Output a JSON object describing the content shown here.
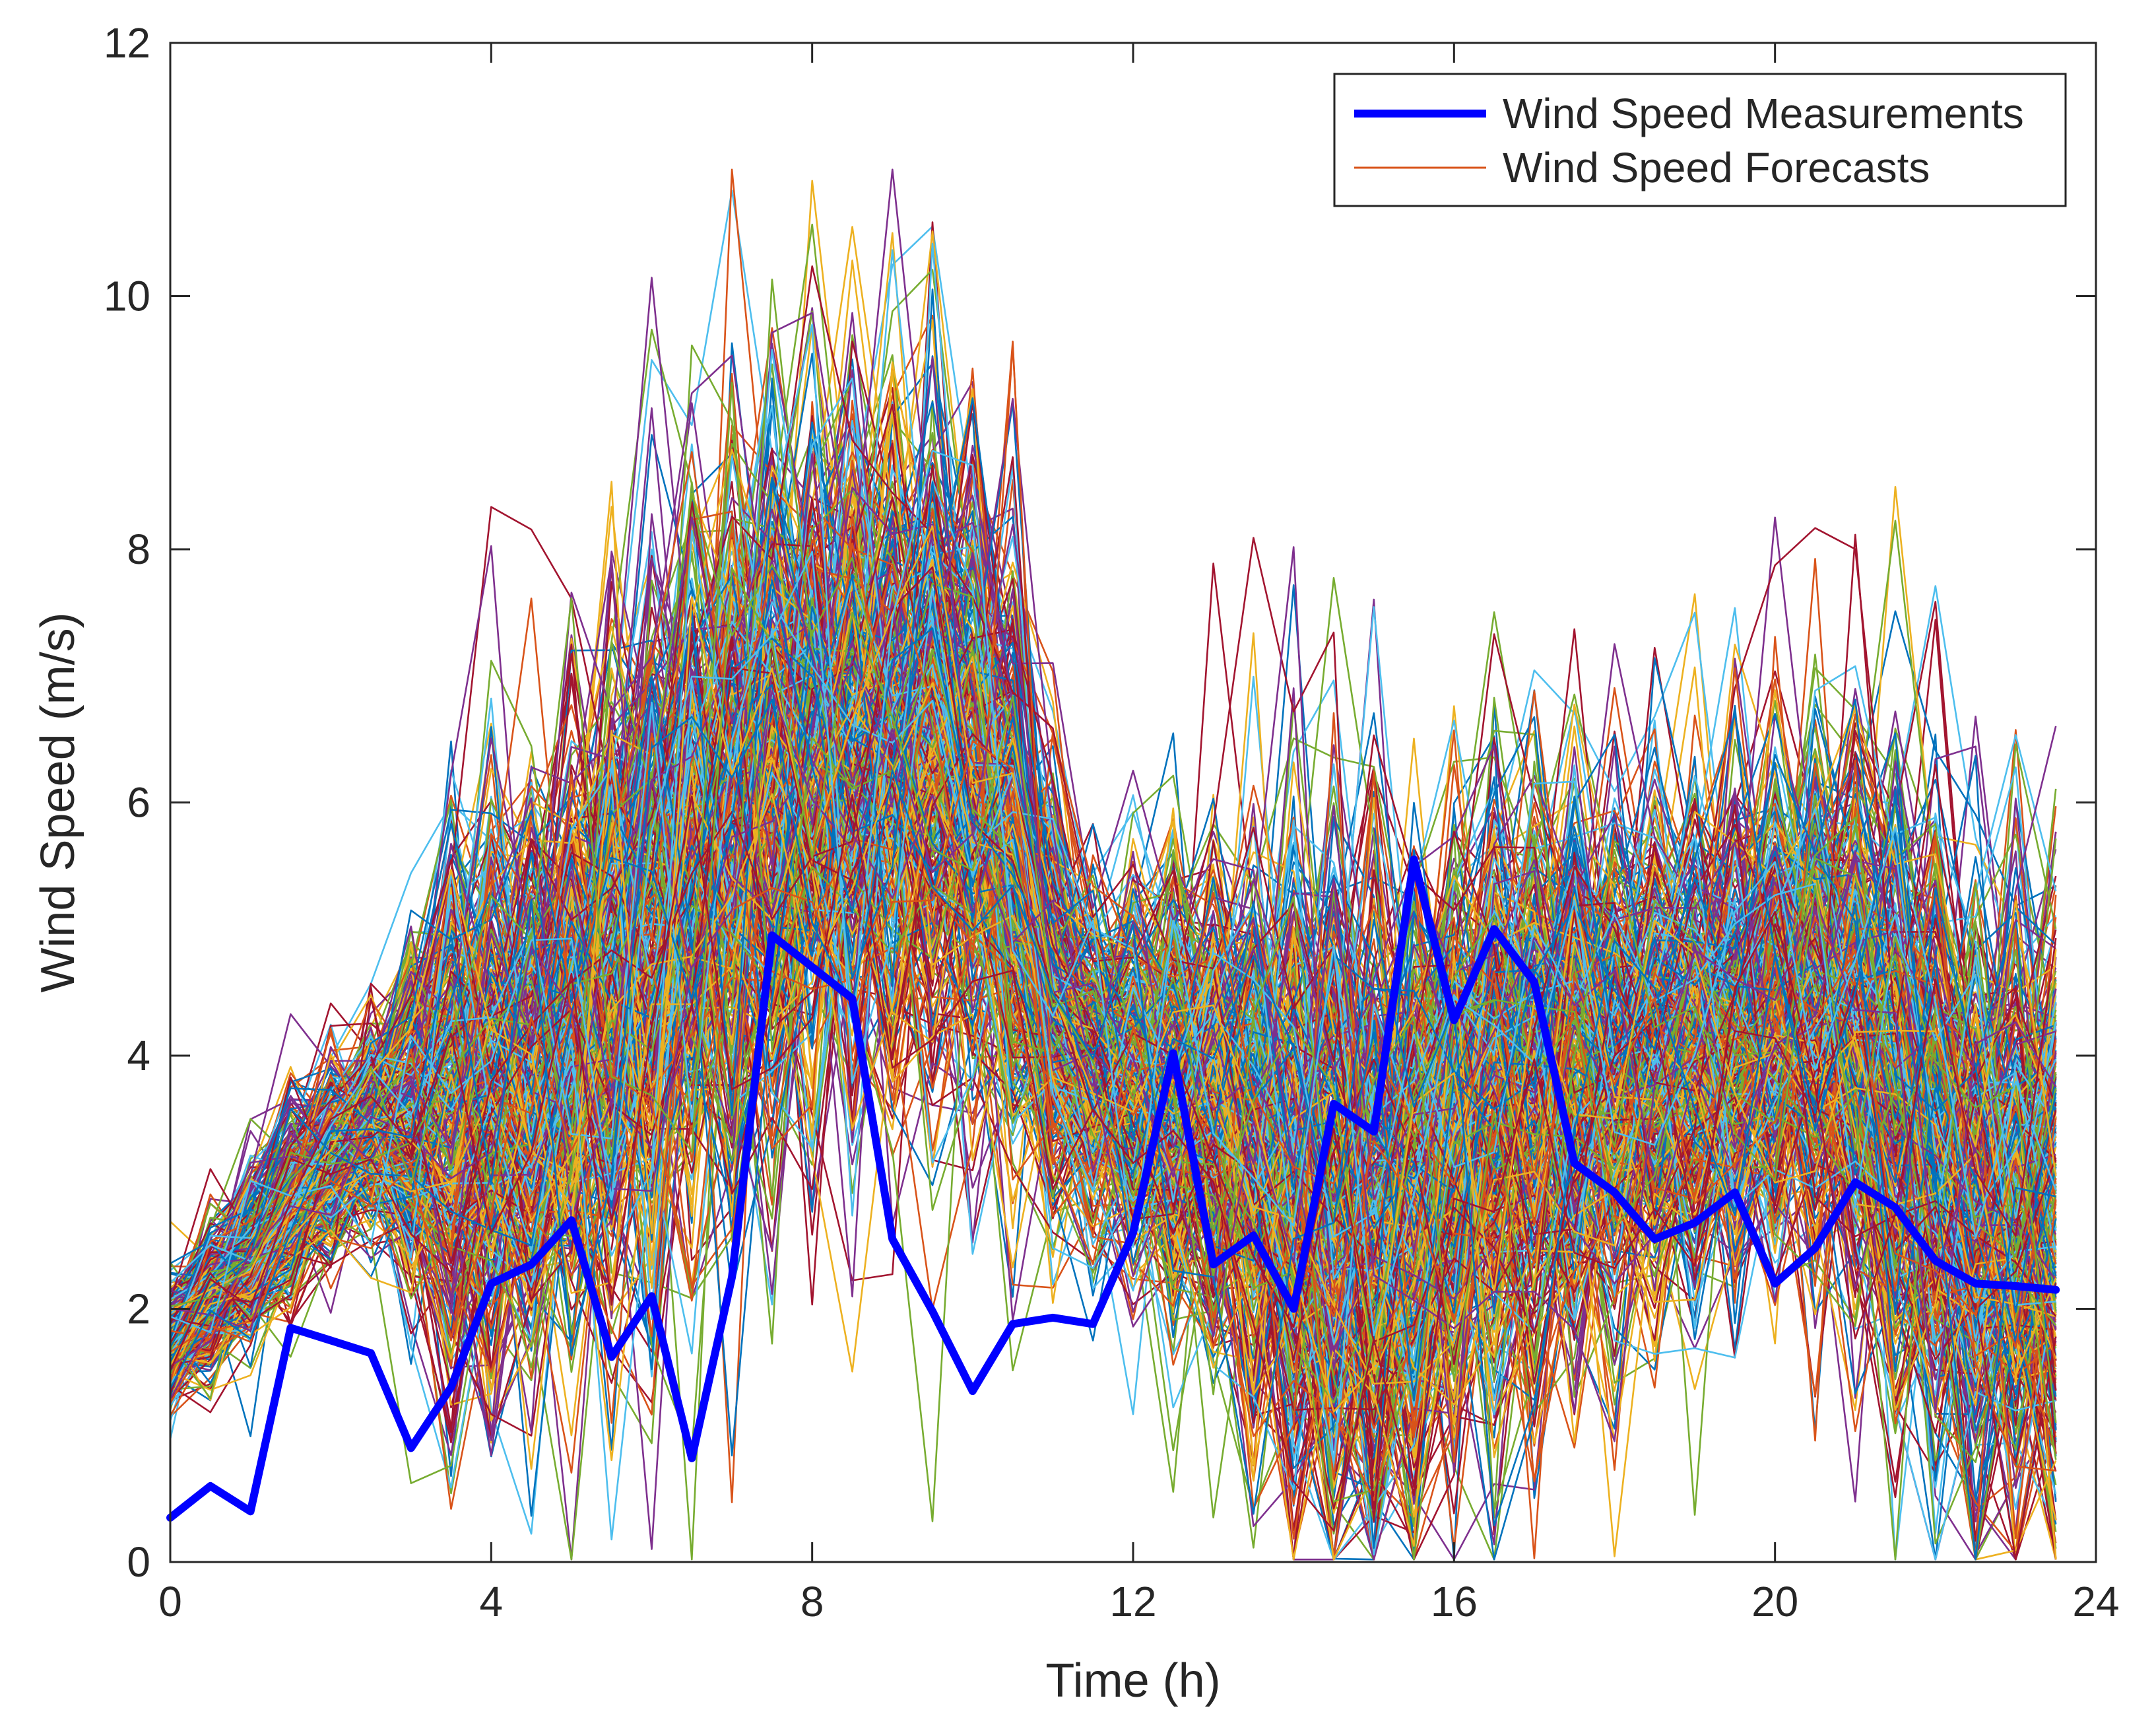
{
  "chart_data": {
    "type": "line",
    "title": "",
    "xlabel": "Time (h)",
    "ylabel": "Wind Speed (m/s)",
    "xlim": [
      0,
      24
    ],
    "ylim": [
      0,
      12
    ],
    "xticks": [
      0,
      4,
      8,
      12,
      16,
      20,
      24
    ],
    "yticks": [
      0,
      2,
      4,
      6,
      8,
      10,
      12
    ],
    "grid": false,
    "legend": {
      "position": "top-right",
      "entries": [
        "Wind Speed Measurements",
        "Wind Speed Forecasts"
      ]
    },
    "series": [
      {
        "name": "Wind Speed Measurements",
        "color": "#0000ff",
        "x": [
          0,
          0.5,
          1,
          1.5,
          2,
          2.5,
          3,
          3.5,
          4,
          4.5,
          5,
          5.5,
          6,
          6.5,
          7,
          7.5,
          8,
          8.5,
          9,
          9.5,
          10,
          10.5,
          11,
          11.5,
          12,
          12.5,
          13,
          13.5,
          14,
          14.5,
          15,
          15.5,
          16,
          16.5,
          17,
          17.5,
          18,
          18.5,
          19,
          19.5,
          20,
          20.5,
          21,
          21.5,
          22,
          22.5,
          23,
          23.5
        ],
        "values": [
          0.35,
          0.6,
          0.4,
          1.85,
          1.75,
          1.65,
          0.9,
          1.38,
          2.2,
          2.35,
          2.7,
          1.62,
          2.1,
          0.82,
          2.25,
          4.95,
          4.7,
          4.45,
          2.55,
          1.98,
          1.35,
          1.88,
          1.93,
          1.88,
          2.6,
          4.02,
          2.35,
          2.58,
          2.0,
          3.62,
          3.4,
          5.55,
          4.28,
          5.0,
          4.58,
          3.15,
          2.92,
          2.55,
          2.68,
          2.92,
          2.2,
          2.48,
          3.0,
          2.8,
          2.38,
          2.2,
          2.18,
          2.15
        ]
      },
      {
        "name": "Wind Speed Forecasts",
        "color": "#d95319",
        "ensemble_members": 400,
        "x": [
          0,
          0.5,
          1,
          1.5,
          2,
          2.5,
          3,
          3.5,
          4,
          4.5,
          5,
          5.5,
          6,
          6.5,
          7,
          7.5,
          8,
          8.5,
          9,
          9.5,
          10,
          10.5,
          11,
          11.5,
          12,
          12.5,
          13,
          13.5,
          14,
          14.5,
          15,
          15.5,
          16,
          16.5,
          17,
          17.5,
          18,
          18.5,
          19,
          19.5,
          20,
          20.5,
          21,
          21.5,
          22,
          22.5,
          23,
          23.5
        ],
        "mean": [
          1.75,
          2.1,
          2.45,
          2.85,
          3.2,
          3.45,
          3.5,
          3.6,
          3.65,
          3.8,
          4.2,
          4.6,
          5.0,
          5.5,
          5.9,
          6.2,
          6.4,
          6.5,
          6.45,
          6.4,
          6.2,
          5.6,
          4.4,
          3.9,
          3.8,
          3.75,
          3.6,
          3.4,
          3.1,
          2.9,
          2.8,
          3.0,
          3.3,
          3.6,
          3.8,
          3.85,
          3.9,
          4.0,
          4.1,
          4.2,
          4.4,
          4.4,
          4.2,
          3.8,
          3.3,
          3.0,
          2.8,
          2.8
        ],
        "spread": [
          0.25,
          0.3,
          0.35,
          0.4,
          0.4,
          0.45,
          0.7,
          1.1,
          1.2,
          1.2,
          1.3,
          1.4,
          1.5,
          1.5,
          1.6,
          1.6,
          1.5,
          1.5,
          1.4,
          1.4,
          1.3,
          1.3,
          0.9,
          0.7,
          0.8,
          0.9,
          1.0,
          1.2,
          1.4,
          1.5,
          1.5,
          1.4,
          1.3,
          1.3,
          1.2,
          1.1,
          1.1,
          1.0,
          1.0,
          1.0,
          1.0,
          1.1,
          1.2,
          1.3,
          1.3,
          1.3,
          1.3,
          1.3
        ]
      }
    ]
  },
  "palette": [
    "#0072bd",
    "#d95319",
    "#edb120",
    "#7e2f8e",
    "#77ac30",
    "#4dbeee",
    "#a2142f"
  ]
}
